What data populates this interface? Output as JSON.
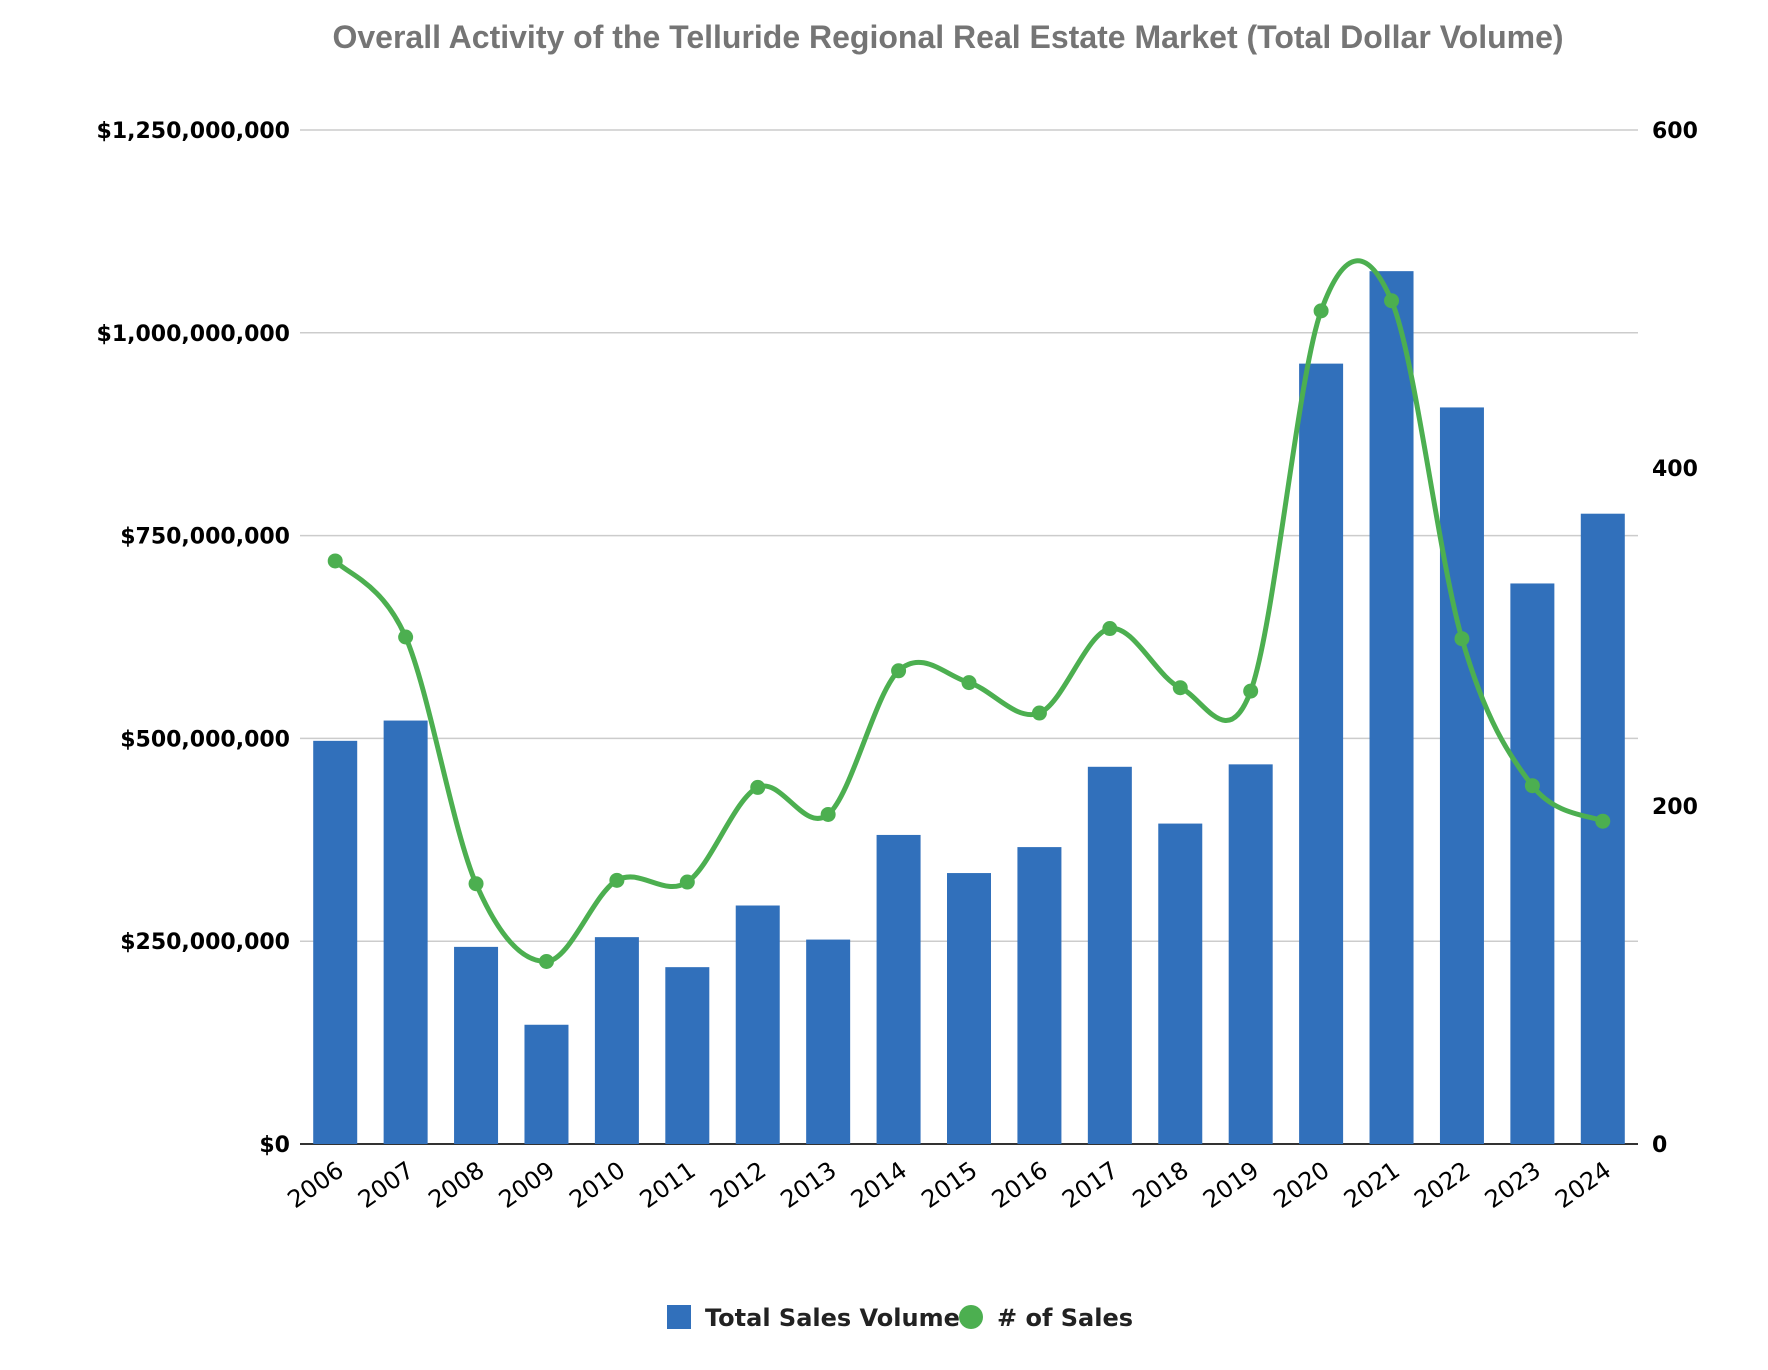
{
  "chart_data": {
    "type": "bar",
    "title": "Overall Activity of the Telluride Regional Real Estate Market (Total Dollar Volume)",
    "categories": [
      "2006",
      "2007",
      "2008",
      "2009",
      "2010",
      "2011",
      "2012",
      "2013",
      "2014",
      "2015",
      "2016",
      "2017",
      "2018",
      "2019",
      "2020",
      "2021",
      "2022",
      "2023",
      "2024"
    ],
    "series": [
      {
        "name": "Total Sales Volume",
        "type": "bar",
        "axis": "left",
        "color": "#3170bb",
        "values": [
          497000000,
          522000000,
          243000000,
          147000000,
          255000000,
          218000000,
          294000000,
          252000000,
          381000000,
          334000000,
          366000000,
          465000000,
          395000000,
          468000000,
          962000000,
          1076000000,
          908000000,
          691000000,
          777000000
        ]
      },
      {
        "name": "# of Sales",
        "type": "line",
        "axis": "right",
        "color": "#4caf50",
        "values": [
          345,
          300,
          154,
          108,
          156,
          155,
          211,
          195,
          280,
          273,
          255,
          305,
          270,
          268,
          493,
          499,
          299,
          212,
          191
        ]
      }
    ],
    "y_left": {
      "ylim": [
        0,
        1250000000
      ],
      "tick_labels": [
        "$0",
        "$250,000,000",
        "$500,000,000",
        "$750,000,000",
        "$1,000,000,000",
        "$1,250,000,000"
      ]
    },
    "y_right": {
      "ylim": [
        0,
        600
      ],
      "tick_labels": [
        "0",
        "200",
        "400",
        "600"
      ]
    },
    "grid": true,
    "legend": "bottom"
  }
}
